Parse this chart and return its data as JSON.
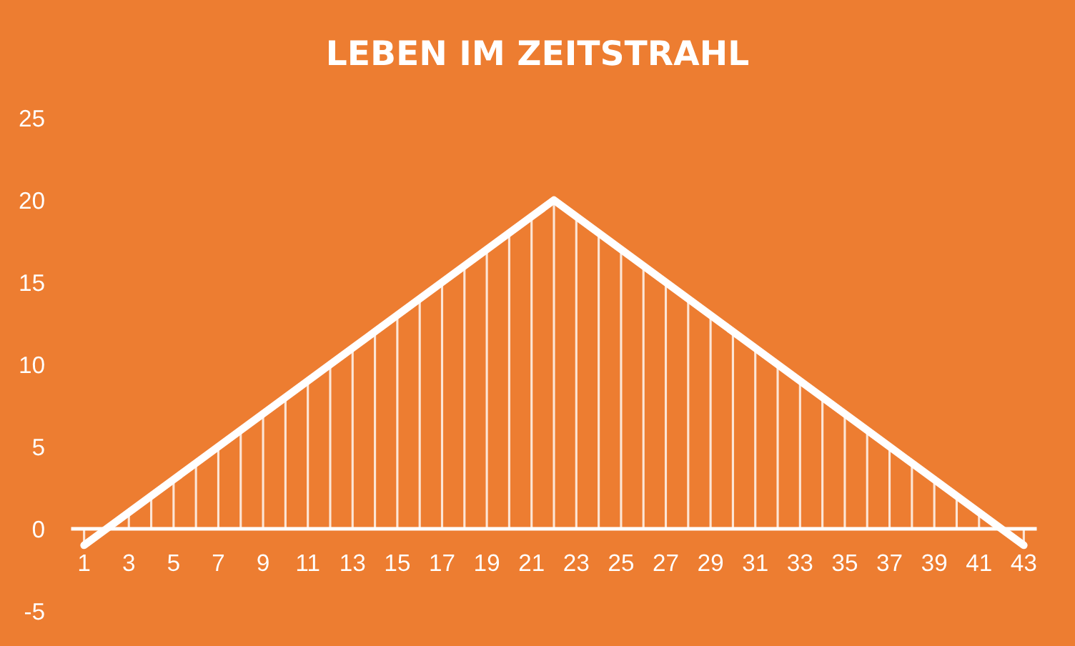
{
  "chart_data": {
    "type": "line",
    "title": "LEBEN IM ZEITSTRAHL",
    "categories": [
      "1",
      null,
      "3",
      null,
      "5",
      null,
      "7",
      null,
      "9",
      null,
      "11",
      null,
      "13",
      null,
      "15",
      null,
      "17",
      null,
      "19",
      null,
      "21",
      null,
      "23",
      null,
      "25",
      null,
      "27",
      null,
      "29",
      null,
      "31",
      null,
      "33",
      null,
      "35",
      null,
      "37",
      null,
      "39",
      null,
      "41",
      null,
      "43"
    ],
    "series": [
      {
        "type": "bar",
        "color": "#ffffff",
        "values": [
          -1,
          0,
          1,
          2,
          3,
          4,
          5,
          6,
          7,
          8,
          9,
          10,
          11,
          12,
          13,
          14,
          15,
          16,
          17,
          18,
          19,
          20,
          19,
          18,
          17,
          16,
          15,
          14,
          13,
          12,
          11,
          10,
          9,
          8,
          7,
          6,
          5,
          4,
          3,
          2,
          1,
          0,
          -1
        ]
      },
      {
        "color": "#ffffff",
        "values": [
          -1,
          0,
          1,
          2,
          3,
          4,
          5,
          6,
          7,
          8,
          9,
          10,
          11,
          12,
          13,
          14,
          15,
          16,
          17,
          18,
          19,
          20,
          19,
          18,
          17,
          16,
          15,
          14,
          13,
          12,
          11,
          10,
          9,
          8,
          7,
          6,
          5,
          4,
          3,
          2,
          1,
          0,
          -1
        ]
      }
    ],
    "ylim": [
      -5,
      25
    ],
    "yticks": [
      -5,
      0,
      5,
      10,
      15,
      20,
      25
    ],
    "marker": "none",
    "line_style": "solid"
  }
}
